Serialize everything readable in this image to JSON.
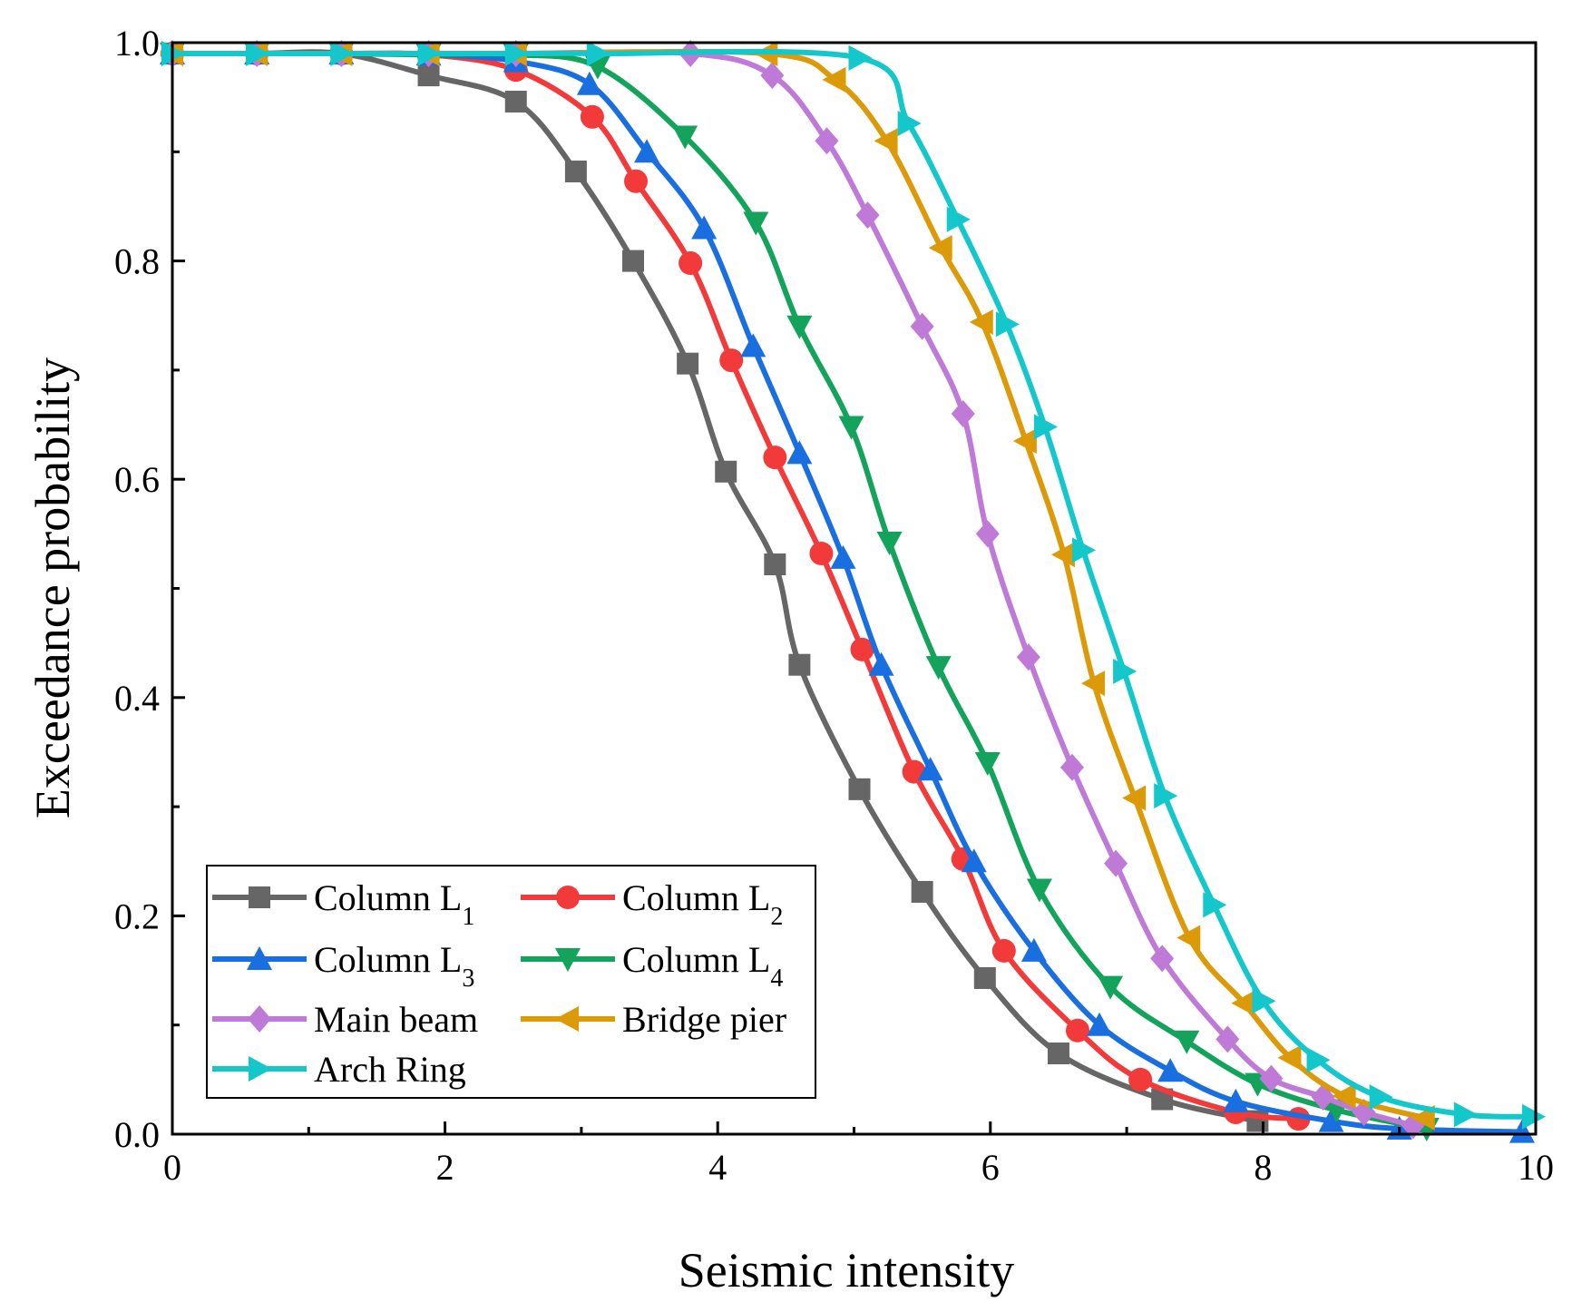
{
  "chart_data": {
    "type": "line",
    "title": "",
    "xlabel": "Seismic intensity",
    "ylabel": "Exceedance probability",
    "xlim": [
      0,
      10
    ],
    "ylim": [
      0,
      1.0
    ],
    "x_ticks": [
      "0",
      "2",
      "4",
      "6",
      "8",
      "10"
    ],
    "y_ticks": [
      "0.0",
      "0.2",
      "0.4",
      "0.6",
      "0.8",
      "1.0"
    ],
    "legend_position": "bottom-left",
    "series": [
      {
        "name": "Column L1",
        "label_main": "Column L",
        "label_sub": "1",
        "color": "#666666",
        "marker": "square",
        "x": [
          0.0,
          0.62,
          1.24,
          1.88,
          2.52,
          2.96,
          3.38,
          3.78,
          4.06,
          4.42,
          4.6,
          5.04,
          5.5,
          5.96,
          6.5,
          7.26,
          7.96
        ],
        "y": [
          0.99,
          0.99,
          0.99,
          0.97,
          0.946,
          0.882,
          0.8,
          0.706,
          0.607,
          0.522,
          0.43,
          0.316,
          0.222,
          0.143,
          0.074,
          0.032,
          0.012
        ]
      },
      {
        "name": "Column L2",
        "label_main": "Column L",
        "label_sub": "2",
        "color": "#f23a3a",
        "marker": "circle",
        "x": [
          0.0,
          0.62,
          1.24,
          1.88,
          2.52,
          3.08,
          3.4,
          3.8,
          4.1,
          4.42,
          4.76,
          5.06,
          5.44,
          5.8,
          6.1,
          6.64,
          7.1,
          7.8,
          8.26
        ],
        "y": [
          0.99,
          0.99,
          0.99,
          0.989,
          0.975,
          0.932,
          0.873,
          0.798,
          0.709,
          0.62,
          0.532,
          0.444,
          0.332,
          0.252,
          0.168,
          0.095,
          0.05,
          0.02,
          0.014
        ]
      },
      {
        "name": "Column L3",
        "label_main": "Column L",
        "label_sub": "3",
        "color": "#1a6fe0",
        "marker": "triangle-up",
        "x": [
          0.0,
          0.62,
          1.24,
          1.88,
          2.52,
          3.06,
          3.48,
          3.9,
          4.26,
          4.6,
          4.92,
          5.2,
          5.56,
          5.88,
          6.32,
          6.8,
          7.32,
          7.8,
          8.5,
          9.0,
          9.9
        ],
        "y": [
          0.99,
          0.99,
          0.99,
          0.989,
          0.983,
          0.962,
          0.9,
          0.83,
          0.722,
          0.624,
          0.528,
          0.43,
          0.334,
          0.25,
          0.168,
          0.1,
          0.058,
          0.03,
          0.012,
          0.005,
          0.002
        ]
      },
      {
        "name": "Column L4",
        "label_main": "Column L",
        "label_sub": "4",
        "color": "#13a35b",
        "marker": "triangle-down",
        "x": [
          0.0,
          0.62,
          1.24,
          1.88,
          2.52,
          3.12,
          3.76,
          4.28,
          4.6,
          4.98,
          5.26,
          5.62,
          5.98,
          6.36,
          6.88,
          7.44,
          7.96,
          8.54,
          9.2
        ],
        "y": [
          0.99,
          0.99,
          0.99,
          0.989,
          0.989,
          0.978,
          0.914,
          0.835,
          0.74,
          0.648,
          0.542,
          0.428,
          0.34,
          0.224,
          0.135,
          0.085,
          0.046,
          0.022,
          0.005
        ]
      },
      {
        "name": "Main beam",
        "label_main": "Main beam",
        "label_sub": "",
        "color": "#bf7ad8",
        "marker": "diamond",
        "x": [
          0.0,
          0.62,
          1.24,
          1.88,
          2.52,
          3.8,
          4.4,
          4.8,
          5.1,
          5.5,
          5.8,
          5.98,
          6.28,
          6.6,
          6.92,
          7.26,
          7.74,
          8.06,
          8.44,
          8.74,
          9.1
        ],
        "y": [
          0.99,
          0.99,
          0.99,
          0.99,
          0.99,
          0.99,
          0.97,
          0.91,
          0.842,
          0.74,
          0.66,
          0.55,
          0.437,
          0.336,
          0.248,
          0.161,
          0.087,
          0.051,
          0.034,
          0.02,
          0.008
        ]
      },
      {
        "name": "Bridge pier",
        "label_main": "Bridge pier",
        "label_sub": "",
        "color": "#dd9a08",
        "marker": "triangle-left",
        "x": [
          0.0,
          0.62,
          1.24,
          1.88,
          2.52,
          4.36,
          4.86,
          5.24,
          5.64,
          5.94,
          6.26,
          6.54,
          6.76,
          7.06,
          7.46,
          7.86,
          8.2,
          8.6,
          9.18
        ],
        "y": [
          0.99,
          0.99,
          0.99,
          0.99,
          0.99,
          0.99,
          0.966,
          0.91,
          0.812,
          0.744,
          0.635,
          0.531,
          0.413,
          0.308,
          0.18,
          0.12,
          0.07,
          0.035,
          0.015
        ]
      },
      {
        "name": "Arch Ring",
        "label_main": "Arch Ring",
        "label_sub": "",
        "color": "#14c7cb",
        "marker": "triangle-right",
        "x": [
          0.0,
          0.62,
          1.24,
          1.88,
          2.52,
          3.12,
          5.04,
          5.4,
          5.76,
          6.12,
          6.4,
          6.68,
          6.98,
          7.28,
          7.64,
          8.0,
          8.4,
          8.86,
          9.48,
          9.98
        ],
        "y": [
          0.99,
          0.99,
          0.99,
          0.99,
          0.99,
          0.99,
          0.986,
          0.926,
          0.838,
          0.742,
          0.648,
          0.535,
          0.424,
          0.31,
          0.21,
          0.122,
          0.068,
          0.034,
          0.018,
          0.016
        ]
      }
    ]
  }
}
